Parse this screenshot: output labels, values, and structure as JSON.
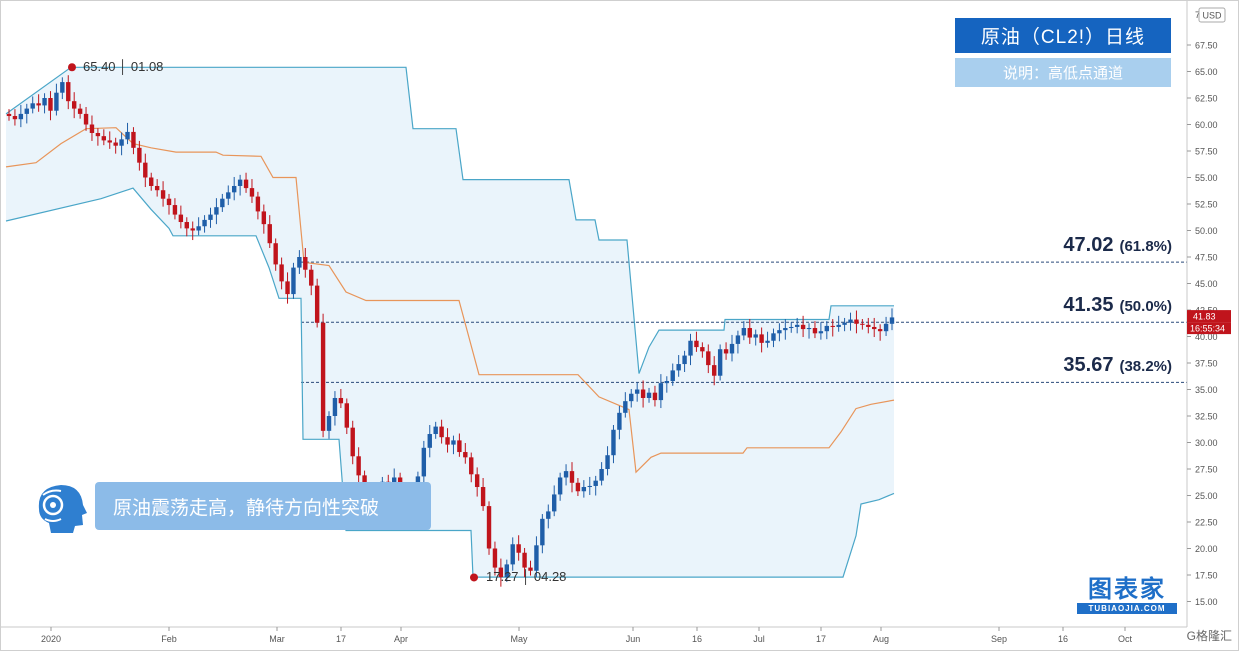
{
  "title": "原油（CL2!）日线",
  "subtitle": "说明：高低点通道",
  "caption": "原油震荡走高，静待方向性突破",
  "logo": {
    "cn": "图表家",
    "en": "TUBIAOJIA.COM"
  },
  "watermark": "G格隆汇",
  "colors": {
    "up": "#1f5ea8",
    "down": "#c0141c",
    "upper_band": "#4aa6c8",
    "lower_band": "#4aa6c8",
    "mid_band": "#e8955a",
    "fill": "#eaf4fb",
    "fib": "#2a4a7a",
    "title_bg": "#1564c0",
    "caption_bg": "#8cbbe8"
  },
  "chart_data": {
    "type": "candlestick",
    "currency": "USD",
    "y_ticks": [
      15.0,
      17.5,
      20.0,
      22.5,
      25.0,
      27.5,
      30.0,
      32.5,
      35.0,
      37.5,
      40.0,
      42.5,
      45.0,
      47.5,
      50.0,
      52.5,
      55.0,
      57.5,
      60.0,
      62.5,
      65.0,
      67.5
    ],
    "y_tick_top_partial": "7",
    "ylim": [
      13.5,
      70.5
    ],
    "x_ticks": [
      "2020",
      "Feb",
      "Mar",
      "17",
      "Apr",
      "May",
      "Jun",
      "16",
      "Jul",
      "17",
      "Aug",
      "Sep",
      "16",
      "Oct"
    ],
    "last_price_label": "41.83",
    "countdown_label": "16:55:34",
    "fib_levels": [
      {
        "value": "47.02",
        "pct": "(61.8%)",
        "price": 47.02
      },
      {
        "value": "41.35",
        "pct": "(50.0%)",
        "price": 41.35
      },
      {
        "value": "35.67",
        "pct": "(38.2%)",
        "price": 35.67
      }
    ],
    "annotations": [
      {
        "text": "65.40 │ 01.08",
        "price": 65.4
      },
      {
        "text": "17.27 │ 04.28",
        "price": 17.27
      }
    ],
    "closes": [
      60.8,
      60.5,
      61.0,
      61.5,
      62.0,
      61.8,
      62.5,
      61.3,
      63.0,
      64.0,
      62.2,
      61.5,
      61.0,
      60.0,
      59.2,
      58.9,
      58.5,
      58.3,
      58.0,
      58.6,
      59.3,
      57.8,
      56.4,
      55.0,
      54.2,
      53.8,
      53.0,
      52.4,
      51.5,
      50.8,
      50.2,
      50.0,
      50.4,
      51.0,
      51.5,
      52.2,
      53.0,
      53.6,
      54.2,
      54.8,
      54.0,
      53.2,
      51.8,
      50.6,
      48.8,
      46.8,
      45.2,
      44.0,
      46.5,
      47.5,
      46.3,
      44.8,
      41.3,
      31.1,
      32.5,
      34.2,
      33.7,
      31.4,
      28.7,
      26.9,
      24.9,
      23.6,
      24.8,
      26.3,
      25.6,
      26.7,
      25.4,
      24.1,
      25.2,
      26.8,
      29.5,
      30.8,
      31.5,
      30.5,
      29.8,
      30.2,
      29.1,
      28.6,
      27.0,
      25.8,
      24.0,
      20.0,
      18.2,
      17.3,
      18.5,
      20.4,
      19.6,
      18.2,
      17.9,
      20.3,
      22.8,
      23.5,
      25.1,
      26.7,
      27.3,
      26.2,
      25.4,
      25.8,
      25.9,
      26.4,
      27.5,
      28.8,
      31.2,
      32.8,
      33.9,
      34.6,
      35.0,
      34.2,
      34.7,
      34.0,
      35.6,
      35.8,
      36.8,
      37.4,
      38.2,
      39.6,
      39.0,
      38.6,
      37.3,
      36.3,
      38.8,
      38.4,
      39.3,
      40.1,
      40.8,
      39.9,
      40.2,
      39.4,
      39.6,
      40.3,
      40.6,
      40.8,
      40.9,
      41.1,
      40.7,
      40.8,
      40.3,
      40.5,
      41.0,
      40.9,
      41.1,
      41.3,
      41.6,
      41.2,
      41.1,
      40.9,
      40.7,
      40.5,
      41.2,
      41.8
    ],
    "upper_band": [
      {
        "x": 5,
        "y": 61.0
      },
      {
        "x": 70,
        "y": 65.4
      },
      {
        "x": 405,
        "y": 65.4
      },
      {
        "x": 412,
        "y": 59.6
      },
      {
        "x": 455,
        "y": 59.6
      },
      {
        "x": 462,
        "y": 54.8
      },
      {
        "x": 568,
        "y": 54.8
      },
      {
        "x": 575,
        "y": 51.0
      },
      {
        "x": 594,
        "y": 51.0
      },
      {
        "x": 598,
        "y": 49.1
      },
      {
        "x": 626,
        "y": 49.1
      },
      {
        "x": 638,
        "y": 36.5
      },
      {
        "x": 648,
        "y": 39.0
      },
      {
        "x": 658,
        "y": 40.6
      },
      {
        "x": 723,
        "y": 40.6
      },
      {
        "x": 724,
        "y": 41.6
      },
      {
        "x": 828,
        "y": 41.6
      },
      {
        "x": 830,
        "y": 42.9
      },
      {
        "x": 893,
        "y": 42.9
      }
    ],
    "lower_band": [
      {
        "x": 5,
        "y": 50.9
      },
      {
        "x": 100,
        "y": 53.0
      },
      {
        "x": 132,
        "y": 54.0
      },
      {
        "x": 150,
        "y": 52.0
      },
      {
        "x": 168,
        "y": 50.2
      },
      {
        "x": 172,
        "y": 49.5
      },
      {
        "x": 255,
        "y": 49.5
      },
      {
        "x": 268,
        "y": 46.5
      },
      {
        "x": 278,
        "y": 43.6
      },
      {
        "x": 300,
        "y": 43.6
      },
      {
        "x": 302,
        "y": 30.3
      },
      {
        "x": 338,
        "y": 30.3
      },
      {
        "x": 345,
        "y": 21.7
      },
      {
        "x": 470,
        "y": 21.7
      },
      {
        "x": 472,
        "y": 17.3
      },
      {
        "x": 842,
        "y": 17.3
      },
      {
        "x": 855,
        "y": 21.2
      },
      {
        "x": 860,
        "y": 24.2
      },
      {
        "x": 878,
        "y": 24.6
      },
      {
        "x": 893,
        "y": 25.2
      }
    ],
    "mid_band": [
      {
        "x": 5,
        "y": 56.0
      },
      {
        "x": 35,
        "y": 56.4
      },
      {
        "x": 60,
        "y": 58.2
      },
      {
        "x": 85,
        "y": 59.6
      },
      {
        "x": 115,
        "y": 59.7
      },
      {
        "x": 132,
        "y": 58.2
      },
      {
        "x": 150,
        "y": 57.8
      },
      {
        "x": 175,
        "y": 57.4
      },
      {
        "x": 215,
        "y": 57.4
      },
      {
        "x": 222,
        "y": 57.1
      },
      {
        "x": 260,
        "y": 57.0
      },
      {
        "x": 272,
        "y": 55.0
      },
      {
        "x": 295,
        "y": 55.0
      },
      {
        "x": 303,
        "y": 47.0
      },
      {
        "x": 328,
        "y": 46.7
      },
      {
        "x": 345,
        "y": 44.2
      },
      {
        "x": 365,
        "y": 43.4
      },
      {
        "x": 458,
        "y": 43.4
      },
      {
        "x": 478,
        "y": 36.4
      },
      {
        "x": 577,
        "y": 36.4
      },
      {
        "x": 598,
        "y": 34.3
      },
      {
        "x": 628,
        "y": 33.1
      },
      {
        "x": 635,
        "y": 27.2
      },
      {
        "x": 650,
        "y": 28.6
      },
      {
        "x": 660,
        "y": 29.0
      },
      {
        "x": 742,
        "y": 29.0
      },
      {
        "x": 746,
        "y": 29.5
      },
      {
        "x": 828,
        "y": 29.5
      },
      {
        "x": 840,
        "y": 31.0
      },
      {
        "x": 855,
        "y": 33.2
      },
      {
        "x": 870,
        "y": 33.6
      },
      {
        "x": 893,
        "y": 34.0
      }
    ]
  }
}
